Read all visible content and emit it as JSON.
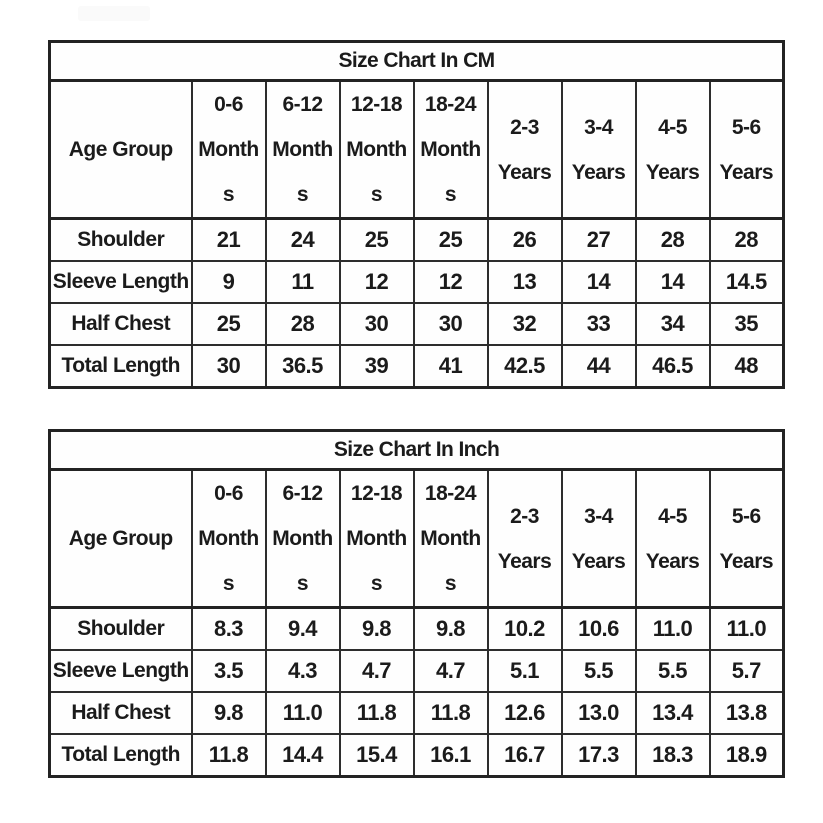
{
  "page": {
    "background": "#ffffff",
    "text_color": "#1b1b1b",
    "border_color": "#2d2d2d"
  },
  "tables": [
    {
      "id": "cm",
      "title": "Size Chart In CM",
      "columns": [
        "Age Group",
        "0-6\nMonth\ns",
        "6-12\nMonth\ns",
        "12-18\nMonth\ns",
        "18-24\nMonth\ns",
        "2-3\nYears",
        "3-4\nYears",
        "4-5\nYears",
        "5-6\nYears"
      ],
      "rows": [
        {
          "label": "Shoulder",
          "values": [
            "21",
            "24",
            "25",
            "25",
            "26",
            "27",
            "28",
            "28"
          ]
        },
        {
          "label": "Sleeve Length",
          "values": [
            "9",
            "11",
            "12",
            "12",
            "13",
            "14",
            "14",
            "14.5"
          ]
        },
        {
          "label": "Half Chest",
          "values": [
            "25",
            "28",
            "30",
            "30",
            "32",
            "33",
            "34",
            "35"
          ]
        },
        {
          "label": "Total Length",
          "values": [
            "30",
            "36.5",
            "39",
            "41",
            "42.5",
            "44",
            "46.5",
            "48"
          ]
        }
      ]
    },
    {
      "id": "inch",
      "title": "Size Chart In Inch",
      "columns": [
        "Age Group",
        "0-6\nMonth\ns",
        "6-12\nMonth\ns",
        "12-18\nMonth\ns",
        "18-24\nMonth\ns",
        "2-3\nYears",
        "3-4\nYears",
        "4-5\nYears",
        "5-6\nYears"
      ],
      "rows": [
        {
          "label": "Shoulder",
          "values": [
            "8.3",
            "9.4",
            "9.8",
            "9.8",
            "10.2",
            "10.6",
            "11.0",
            "11.0"
          ]
        },
        {
          "label": "Sleeve Length",
          "values": [
            "3.5",
            "4.3",
            "4.7",
            "4.7",
            "5.1",
            "5.5",
            "5.5",
            "5.7"
          ]
        },
        {
          "label": "Half Chest",
          "values": [
            "9.8",
            "11.0",
            "11.8",
            "11.8",
            "12.6",
            "13.0",
            "13.4",
            "13.8"
          ]
        },
        {
          "label": "Total Length",
          "values": [
            "11.8",
            "14.4",
            "15.4",
            "16.1",
            "16.7",
            "17.3",
            "18.3",
            "18.9"
          ]
        }
      ]
    }
  ],
  "chart_data": [
    {
      "type": "table",
      "title": "Size Chart In CM",
      "unit": "CM",
      "row_header": "Age Group",
      "categories": [
        "0-6 Months",
        "6-12 Months",
        "12-18 Months",
        "18-24 Months",
        "2-3 Years",
        "3-4 Years",
        "4-5 Years",
        "5-6 Years"
      ],
      "series": [
        {
          "name": "Shoulder",
          "values": [
            21,
            24,
            25,
            25,
            26,
            27,
            28,
            28
          ]
        },
        {
          "name": "Sleeve Length",
          "values": [
            9,
            11,
            12,
            12,
            13,
            14,
            14,
            14.5
          ]
        },
        {
          "name": "Half Chest",
          "values": [
            25,
            28,
            30,
            30,
            32,
            33,
            34,
            35
          ]
        },
        {
          "name": "Total Length",
          "values": [
            30,
            36.5,
            39,
            41,
            42.5,
            44,
            46.5,
            48
          ]
        }
      ]
    },
    {
      "type": "table",
      "title": "Size Chart In Inch",
      "unit": "Inch",
      "row_header": "Age Group",
      "categories": [
        "0-6 Months",
        "6-12 Months",
        "12-18 Months",
        "18-24 Months",
        "2-3 Years",
        "3-4 Years",
        "4-5 Years",
        "5-6 Years"
      ],
      "series": [
        {
          "name": "Shoulder",
          "values": [
            8.3,
            9.4,
            9.8,
            9.8,
            10.2,
            10.6,
            11.0,
            11.0
          ]
        },
        {
          "name": "Sleeve Length",
          "values": [
            3.5,
            4.3,
            4.7,
            4.7,
            5.1,
            5.5,
            5.5,
            5.7
          ]
        },
        {
          "name": "Half Chest",
          "values": [
            9.8,
            11.0,
            11.8,
            11.8,
            12.6,
            13.0,
            13.4,
            13.8
          ]
        },
        {
          "name": "Total Length",
          "values": [
            11.8,
            14.4,
            15.4,
            16.1,
            16.7,
            17.3,
            18.3,
            18.9
          ]
        }
      ]
    }
  ]
}
